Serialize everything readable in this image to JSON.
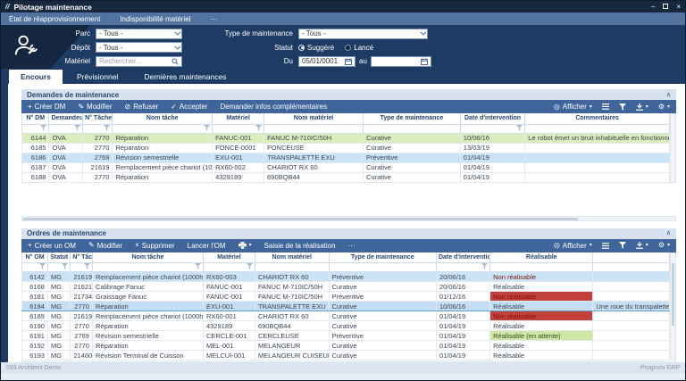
{
  "window": {
    "logo": "//",
    "title": "Pilotage maintenance",
    "controls": {
      "minimize": "–",
      "close": "×"
    }
  },
  "menubar": {
    "items": [
      "Etat de réapprovisionnement",
      "Indisponibilité matériel",
      "···"
    ]
  },
  "filters": {
    "parc": {
      "label": "Parc",
      "value": "- Tous -"
    },
    "depot": {
      "label": "Dépôt",
      "value": "- Tous -"
    },
    "materiel": {
      "label": "Matériel",
      "placeholder": "Rechercher..."
    },
    "type": {
      "label": "Type de maintenance",
      "value": "- Tous -"
    },
    "statut": {
      "label": "Statut",
      "options": [
        {
          "label": "Suggéré",
          "selected": true
        },
        {
          "label": "Lancé",
          "selected": false
        }
      ]
    },
    "du": {
      "label": "Du",
      "value": "05/01/0001"
    },
    "au": {
      "label": "au",
      "value": ""
    }
  },
  "tabs": [
    {
      "label": "Encours",
      "active": true
    },
    {
      "label": "Prévisionnel",
      "active": false
    },
    {
      "label": "Dernières maintenances",
      "active": false
    }
  ],
  "grid_common": {
    "afficher": "Afficher"
  },
  "demandes": {
    "title": "Demandes de maintenance",
    "toolbar": {
      "create": "Créer DM",
      "modify": "Modifier",
      "refuse": "Refuser",
      "accept": "Accepter",
      "infos": "Demander infos complémentaires"
    },
    "columns": [
      {
        "key": "num",
        "label": "N° DM",
        "filter": true
      },
      {
        "key": "demandeur",
        "label": "Demandeur",
        "filter": true
      },
      {
        "key": "ntache",
        "label": "N° Tâche",
        "filter": true
      },
      {
        "key": "nom_tache",
        "label": "Nom tâche",
        "filter": true
      },
      {
        "key": "materiel",
        "label": "Matériel",
        "filter": true
      },
      {
        "key": "nom_materiel",
        "label": "Nom matériel",
        "filter": false
      },
      {
        "key": "type",
        "label": "Type de maintenance",
        "filter": false
      },
      {
        "key": "date",
        "label": "Date d'intervention",
        "filter": true
      },
      {
        "key": "commentaires",
        "label": "Commentaires",
        "filter": false
      }
    ],
    "rows": [
      {
        "num": "6144",
        "demandeur": "OVA",
        "ntache": "2770",
        "nom_tache": "Réparation",
        "materiel": "FANUC-001",
        "nom_materiel": "FANUC M-710IC/50H",
        "type": "Curative",
        "date": "10/06/16",
        "commentaires": "Le robot émet un bruit inhabituelle en fonctionnement.",
        "highlight": "green"
      },
      {
        "num": "6185",
        "demandeur": "OVA",
        "ntache": "2770",
        "nom_tache": "Réparation",
        "materiel": "FONCE-0001",
        "nom_materiel": "FONCEUSE",
        "type": "Curative",
        "date": "13/03/19",
        "commentaires": "",
        "highlight": "none"
      },
      {
        "num": "6186",
        "demandeur": "OVA",
        "ntache": "2769",
        "nom_tache": "Révision semestrielle",
        "materiel": "EXU-001",
        "nom_materiel": "TRANSPALETTE EXU",
        "type": "Préventive",
        "date": "01/04/19",
        "commentaires": "",
        "highlight": "selected"
      },
      {
        "num": "6187",
        "demandeur": "OVA",
        "ntache": "21619",
        "nom_tache": "Remplacement pièce chariot (1000h)",
        "materiel": "RX60-002",
        "nom_materiel": "CHARIOT RX 60",
        "type": "Curative",
        "date": "01/04/19",
        "commentaires": "",
        "highlight": "none"
      },
      {
        "num": "6188",
        "demandeur": "OVA",
        "ntache": "2770",
        "nom_tache": "Réparation",
        "materiel": "4329189",
        "nom_materiel": "690BQB44",
        "type": "Curative",
        "date": "01/04/19",
        "commentaires": "",
        "highlight": "none"
      }
    ]
  },
  "ordres": {
    "title": "Ordres de maintenance",
    "toolbar": {
      "create": "Créer un OM",
      "modify": "Modifier",
      "delete": "Supprimer",
      "launch": "Lancer l'OM",
      "saisie": "Saisie de la réalisation",
      "more": "···"
    },
    "columns": [
      {
        "key": "num",
        "label": "N° OM",
        "filter": true
      },
      {
        "key": "statut",
        "label": "Statut",
        "filter": true
      },
      {
        "key": "ntache",
        "label": "N° Tâche",
        "filter": true
      },
      {
        "key": "nom_tache",
        "label": "Nom tâche",
        "filter": true
      },
      {
        "key": "materiel",
        "label": "Matériel",
        "filter": true
      },
      {
        "key": "nom_materiel",
        "label": "Nom matériel",
        "filter": false
      },
      {
        "key": "type",
        "label": "Type de maintenance",
        "filter": false
      },
      {
        "key": "date",
        "label": "Date d'intervention",
        "filter": true
      },
      {
        "key": "realisable",
        "label": "Réalisable",
        "filter": false
      },
      {
        "key": "commentaires",
        "label": "",
        "filter": false
      }
    ],
    "rows": [
      {
        "num": "6142",
        "statut": "MG",
        "ntache": "21619",
        "nom_tache": "Remplacement pièce chariot (1000h)",
        "materiel": "RX60-003",
        "nom_materiel": "CHARIOT RX 60",
        "type": "Préventive",
        "date": "20/06/16",
        "realisable": "Non réalisable",
        "state": "non",
        "commentaires": "",
        "highlight": "selected"
      },
      {
        "num": "6168",
        "statut": "MG",
        "ntache": "21621",
        "nom_tache": "Calibrage Fanuc",
        "materiel": "FANUC-001",
        "nom_materiel": "FANUC M-710IC/50H",
        "type": "Curative",
        "date": "20/06/16",
        "realisable": "Réalisable",
        "state": "ok",
        "commentaires": "",
        "highlight": "none"
      },
      {
        "num": "6181",
        "statut": "MG",
        "ntache": "21734",
        "nom_tache": "Graissage Fanuc",
        "materiel": "FANUC-001",
        "nom_materiel": "FANUC M-710IC/50H",
        "type": "Préventive",
        "date": "01/12/16",
        "realisable": "Non réalisable",
        "state": "non",
        "commentaires": "",
        "highlight": "none"
      },
      {
        "num": "6184",
        "statut": "MG",
        "ntache": "2770",
        "nom_tache": "Réparation",
        "materiel": "EXU-001",
        "nom_materiel": "TRANSPALETTE EXU",
        "type": "Curative",
        "date": "10/06/16",
        "realisable": "Réalisable",
        "state": "ok",
        "commentaires": "Une roue du transpalette ne tourne p",
        "highlight": "focus"
      },
      {
        "num": "6189",
        "statut": "MG",
        "ntache": "21619",
        "nom_tache": "Remplacement pièce chariot (1000h)",
        "materiel": "RX60-001",
        "nom_materiel": "CHARIOT RX 60",
        "type": "Curative",
        "date": "01/04/19",
        "realisable": "Non réalisable",
        "state": "non",
        "commentaires": "",
        "highlight": "none"
      },
      {
        "num": "6190",
        "statut": "MG",
        "ntache": "2770",
        "nom_tache": "Réparation",
        "materiel": "4329189",
        "nom_materiel": "690BQB44",
        "type": "Curative",
        "date": "01/04/19",
        "realisable": "Réalisable",
        "state": "ok",
        "commentaires": "",
        "highlight": "none"
      },
      {
        "num": "6191",
        "statut": "MG",
        "ntache": "2769",
        "nom_tache": "Révision semestrielle",
        "materiel": "CERCLE-001",
        "nom_materiel": "CERCLEUSE",
        "type": "Préventive",
        "date": "01/04/19",
        "realisable": "Réalisable (en attente)",
        "state": "attente",
        "commentaires": "",
        "highlight": "none"
      },
      {
        "num": "6192",
        "statut": "MG",
        "ntache": "2770",
        "nom_tache": "Réparation",
        "materiel": "MEL-001",
        "nom_materiel": "MELANGEUR",
        "type": "Curative",
        "date": "01/04/19",
        "realisable": "Réalisable",
        "state": "ok",
        "commentaires": "",
        "highlight": "none"
      },
      {
        "num": "6193",
        "statut": "MG",
        "ntache": "21460",
        "nom_tache": "Révision Terminal de Cuisson",
        "materiel": "MELCUI-001",
        "nom_materiel": "MELANGEUR CUISEUR",
        "type": "Curative",
        "date": "01/04/19",
        "realisable": "Réalisable",
        "state": "ok",
        "commentaires": "",
        "highlight": "none"
      }
    ]
  },
  "statusbar": {
    "left": "593 Architect Demo",
    "right": "Proginov ERP"
  }
}
